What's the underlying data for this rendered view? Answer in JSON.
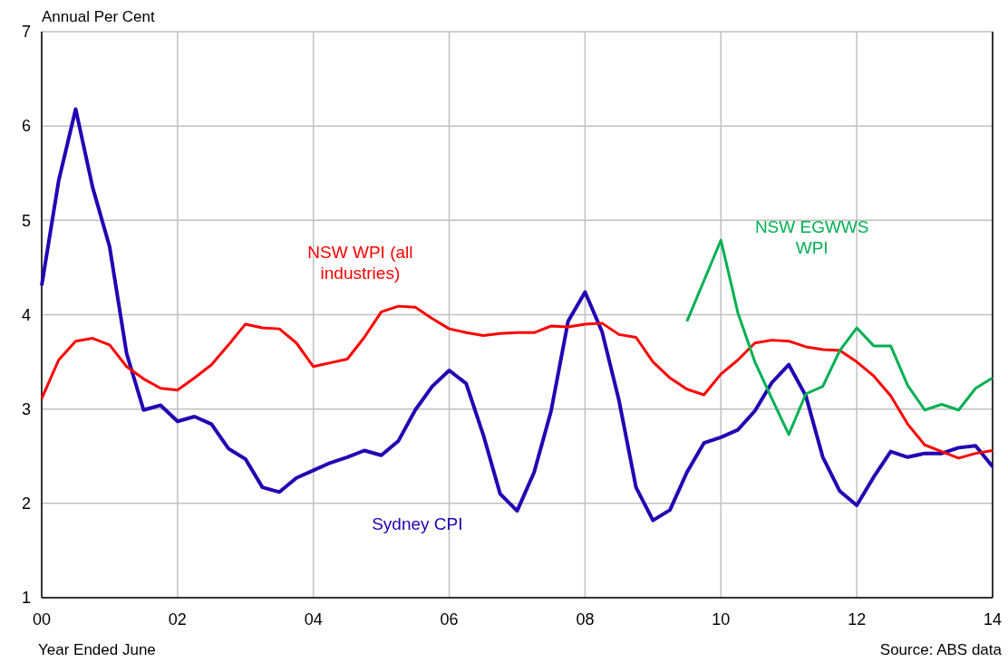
{
  "chart_data": {
    "type": "line",
    "ylabel": "Annual Per Cent",
    "xlabel": "Year Ended June",
    "annotations": [
      "Source: ABS data"
    ],
    "x": [
      0,
      0.25,
      0.5,
      0.75,
      1,
      1.25,
      1.5,
      1.75,
      2,
      2.25,
      2.5,
      2.75,
      3,
      3.25,
      3.5,
      3.75,
      4,
      4.25,
      4.5,
      4.75,
      5,
      5.25,
      5.5,
      5.75,
      6,
      6.25,
      6.5,
      6.75,
      7,
      7.25,
      7.5,
      7.75,
      8,
      8.25,
      8.5,
      8.75,
      9,
      9.25,
      9.5,
      9.75,
      10,
      10.25,
      10.5,
      10.75,
      11,
      11.25,
      11.5,
      11.75,
      12,
      12.25,
      12.5,
      12.75,
      13,
      13.25,
      13.5,
      13.75,
      14
    ],
    "series": [
      {
        "name": "Sydney CPI",
        "color": "#2200b4",
        "values": [
          4.31,
          5.42,
          6.18,
          5.35,
          4.72,
          3.59,
          2.99,
          3.04,
          2.87,
          2.92,
          2.84,
          2.58,
          2.47,
          2.17,
          2.12,
          2.27,
          2.35,
          2.43,
          2.49,
          2.56,
          2.51,
          2.66,
          2.99,
          3.24,
          3.41,
          3.27,
          2.73,
          2.1,
          1.92,
          2.33,
          2.98,
          3.93,
          4.24,
          3.82,
          3.09,
          2.17,
          1.82,
          1.93,
          2.33,
          2.64,
          2.7,
          2.78,
          2.98,
          3.28,
          3.47,
          3.14,
          2.49,
          2.13,
          1.98,
          2.28,
          2.55,
          2.49,
          2.53,
          2.53,
          2.59,
          2.61,
          2.39
        ]
      },
      {
        "name": "NSW WPI (all industries)",
        "color": "#ff0000",
        "values": [
          3.11,
          3.52,
          3.72,
          3.75,
          3.68,
          3.45,
          3.32,
          3.22,
          3.2,
          3.33,
          3.47,
          3.68,
          3.9,
          3.86,
          3.85,
          3.7,
          3.45,
          3.49,
          3.53,
          3.76,
          4.03,
          4.09,
          4.08,
          3.96,
          3.85,
          3.81,
          3.78,
          3.8,
          3.81,
          3.81,
          3.88,
          3.87,
          3.9,
          3.91,
          3.79,
          3.76,
          3.5,
          3.33,
          3.21,
          3.15,
          3.37,
          3.52,
          3.7,
          3.73,
          3.72,
          3.66,
          3.63,
          3.62,
          3.5,
          3.35,
          3.14,
          2.84,
          2.62,
          2.55,
          2.48,
          2.53,
          2.56
        ]
      },
      {
        "name": "NSW EGWWS WPI",
        "color": "#00b050",
        "x": [
          9.5,
          9.75,
          10,
          10.25,
          10.5,
          10.75,
          11,
          11.25,
          11.5,
          11.75,
          12,
          12.25,
          12.5,
          12.75,
          13,
          13.25,
          13.5,
          13.75,
          14
        ],
        "values": [
          3.93,
          4.36,
          4.79,
          4.02,
          3.5,
          3.11,
          2.73,
          3.16,
          3.24,
          3.62,
          3.86,
          3.67,
          3.67,
          3.25,
          2.99,
          3.05,
          2.99,
          3.22,
          3.33
        ]
      }
    ],
    "xlim": [
      0,
      14
    ],
    "xticks": [
      {
        "value": 0,
        "label": "00"
      },
      {
        "value": 2,
        "label": "02"
      },
      {
        "value": 4,
        "label": "04"
      },
      {
        "value": 6,
        "label": "06"
      },
      {
        "value": 8,
        "label": "08"
      },
      {
        "value": 10,
        "label": "10"
      },
      {
        "value": 12,
        "label": "12"
      },
      {
        "value": 14,
        "label": "14"
      }
    ],
    "ylim": [
      1,
      7
    ],
    "yticks": [
      1,
      2,
      3,
      4,
      5,
      6,
      7
    ],
    "grid": true,
    "legend": false,
    "line_style": "solid",
    "marker": "none"
  }
}
